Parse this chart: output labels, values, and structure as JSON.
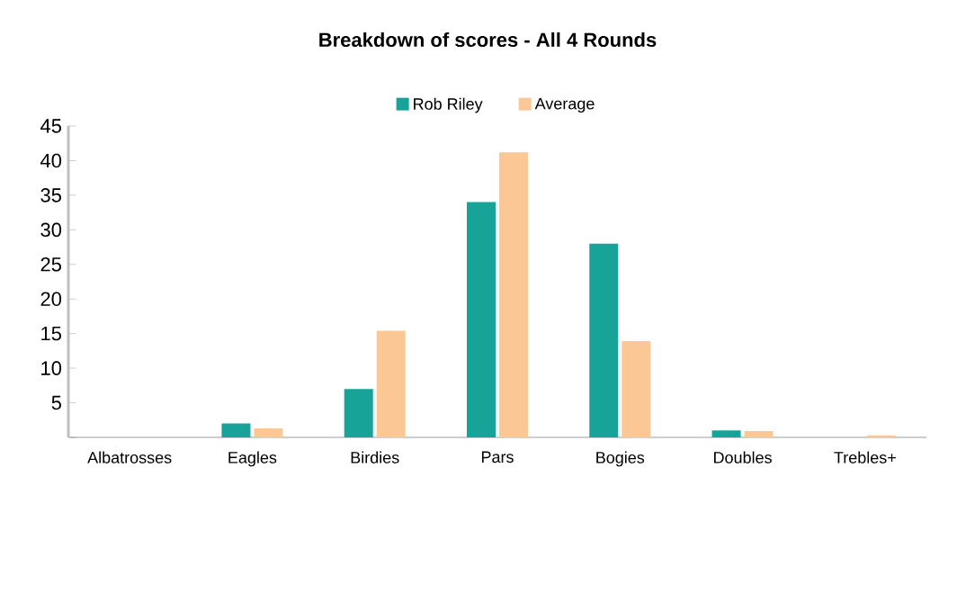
{
  "chart_data": {
    "type": "bar",
    "title": "Breakdown of scores - All 4 Rounds",
    "categories": [
      "Albatrosses",
      "Eagles",
      "Birdies",
      "Pars",
      "Bogies",
      "Doubles",
      "Trebles+"
    ],
    "series": [
      {
        "name": "Rob Riley",
        "color": "#17a398",
        "values": [
          0,
          2,
          7,
          34,
          28,
          1,
          0
        ]
      },
      {
        "name": "Average",
        "color": "#fbc794",
        "values": [
          0,
          1.3,
          15.4,
          41.2,
          13.9,
          0.9,
          0.3
        ]
      }
    ],
    "ylim": [
      0,
      45
    ],
    "yticks": [
      {
        "value": 0,
        "label": null
      },
      5,
      10,
      15,
      20,
      25,
      30,
      35,
      40,
      45
    ],
    "grid": false,
    "legend": "top"
  }
}
